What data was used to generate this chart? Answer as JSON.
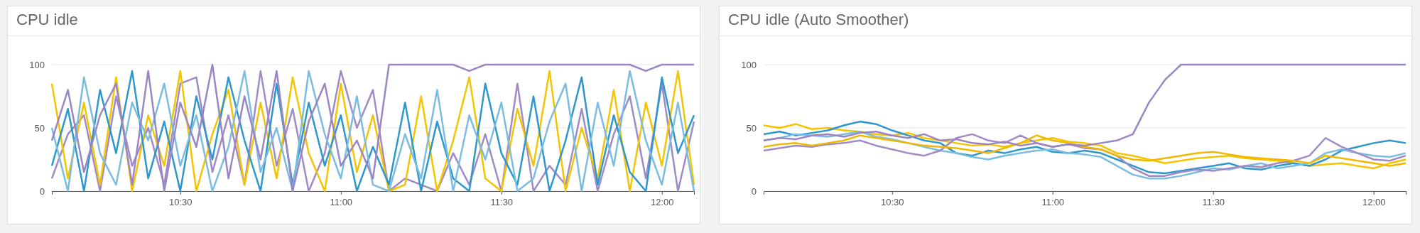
{
  "chart_data": [
    {
      "type": "line",
      "title": "CPU idle",
      "xlim": [
        10.1,
        12.1
      ],
      "ylim": [
        0,
        100
      ],
      "yticks": [
        0,
        50,
        100
      ],
      "xticks": [
        {
          "value": 10.5,
          "label": "10:30"
        },
        {
          "value": 11,
          "label": "11:00"
        },
        {
          "value": 11.5,
          "label": "11:30"
        },
        {
          "value": 12,
          "label": "12:00"
        }
      ],
      "grid": "y",
      "x": [
        10.1,
        10.15,
        10.2,
        10.25,
        10.3,
        10.35,
        10.4,
        10.45,
        10.5,
        10.55,
        10.6,
        10.65,
        10.7,
        10.75,
        10.8,
        10.85,
        10.9,
        10.95,
        11,
        11.05,
        11.1,
        11.15,
        11.2,
        11.25,
        11.3,
        11.35,
        11.4,
        11.45,
        11.5,
        11.55,
        11.6,
        11.65,
        11.7,
        11.75,
        11.8,
        11.85,
        11.9,
        11.95,
        12,
        12.05,
        12.1
      ],
      "series": [
        {
          "color": "#a18bc7",
          "values": [
            10,
            45,
            60,
            0,
            75,
            20,
            50,
            5,
            85,
            90,
            15,
            60,
            5,
            95,
            20,
            65,
            0,
            30,
            95,
            50,
            80,
            0,
            10,
            5,
            0,
            30,
            5,
            45,
            0,
            85,
            0,
            20,
            5,
            65,
            0,
            45,
            75,
            10,
            85,
            0,
            55
          ]
        },
        {
          "color": "#f5c400",
          "values": [
            85,
            10,
            70,
            5,
            90,
            0,
            60,
            20,
            95,
            0,
            45,
            80,
            5,
            70,
            10,
            90,
            30,
            0,
            85,
            15,
            60,
            0,
            5,
            75,
            0,
            40,
            90,
            10,
            0,
            65,
            20,
            95,
            0,
            50,
            10,
            80,
            0,
            70,
            20,
            95,
            5
          ]
        },
        {
          "color": "#2e97cc",
          "values": [
            20,
            65,
            0,
            80,
            30,
            95,
            10,
            55,
            0,
            75,
            25,
            90,
            40,
            0,
            85,
            5,
            70,
            20,
            60,
            0,
            35,
            5,
            70,
            0,
            55,
            10,
            0,
            85,
            30,
            5,
            75,
            0,
            40,
            90,
            5,
            60,
            15,
            0,
            90,
            30,
            60
          ]
        },
        {
          "color": "#7bbde0",
          "values": [
            50,
            0,
            90,
            30,
            5,
            70,
            40,
            85,
            20,
            60,
            0,
            35,
            95,
            15,
            50,
            0,
            95,
            45,
            10,
            75,
            5,
            0,
            45,
            10,
            80,
            0,
            60,
            25,
            70,
            0,
            10,
            55,
            85,
            0,
            70,
            20,
            95,
            40,
            5,
            70,
            0
          ]
        },
        {
          "color": "#9b86c4",
          "values": [
            40,
            80,
            15,
            60,
            85,
            5,
            95,
            0,
            70,
            35,
            100,
            10,
            75,
            25,
            95,
            0,
            55,
            85,
            20,
            40,
            10,
            100,
            100,
            100,
            100,
            100,
            95,
            100,
            100,
            100,
            100,
            100,
            100,
            100,
            100,
            100,
            100,
            95,
            100,
            100,
            100
          ]
        }
      ]
    },
    {
      "type": "line",
      "title": "CPU idle (Auto Smoother)",
      "xlim": [
        10.1,
        12.1
      ],
      "ylim": [
        0,
        100
      ],
      "yticks": [
        0,
        50,
        100
      ],
      "xticks": [
        {
          "value": 10.5,
          "label": "10:30"
        },
        {
          "value": 11,
          "label": "11:00"
        },
        {
          "value": 11.5,
          "label": "11:30"
        },
        {
          "value": 12,
          "label": "12:00"
        }
      ],
      "grid": "y",
      "x": [
        10.1,
        10.15,
        10.2,
        10.25,
        10.3,
        10.35,
        10.4,
        10.45,
        10.5,
        10.55,
        10.6,
        10.65,
        10.7,
        10.75,
        10.8,
        10.85,
        10.9,
        10.95,
        11,
        11.05,
        11.1,
        11.15,
        11.2,
        11.25,
        11.3,
        11.35,
        11.4,
        11.45,
        11.5,
        11.55,
        11.6,
        11.65,
        11.7,
        11.75,
        11.8,
        11.85,
        11.9,
        11.95,
        12,
        12.05,
        12.1
      ],
      "series": [
        {
          "color": "#f5c400",
          "values": [
            52,
            50,
            53,
            49,
            50,
            48,
            47,
            45,
            44,
            46,
            42,
            40,
            38,
            36,
            37,
            35,
            38,
            40,
            42,
            39,
            38,
            36,
            30,
            28,
            25,
            22,
            24,
            26,
            27,
            28,
            26,
            25,
            24,
            22,
            20,
            21,
            22,
            20,
            18,
            22,
            25
          ]
        },
        {
          "color": "#2e97cc",
          "values": [
            45,
            47,
            44,
            46,
            48,
            52,
            55,
            53,
            48,
            44,
            40,
            38,
            30,
            28,
            32,
            30,
            33,
            35,
            31,
            30,
            32,
            30,
            25,
            20,
            15,
            14,
            16,
            18,
            20,
            22,
            18,
            17,
            20,
            22,
            20,
            25,
            32,
            35,
            38,
            40,
            38
          ]
        },
        {
          "color": "#7bbde0",
          "values": [
            40,
            42,
            45,
            44,
            43,
            45,
            47,
            43,
            41,
            38,
            35,
            32,
            30,
            27,
            25,
            28,
            30,
            32,
            33,
            30,
            29,
            27,
            20,
            13,
            10,
            10,
            12,
            15,
            18,
            17,
            20,
            22,
            18,
            20,
            22,
            30,
            33,
            30,
            28,
            27,
            30
          ]
        },
        {
          "color": "#a18bc7",
          "values": [
            32,
            34,
            36,
            35,
            37,
            38,
            40,
            36,
            33,
            30,
            28,
            32,
            42,
            45,
            40,
            38,
            44,
            38,
            35,
            37,
            34,
            33,
            28,
            18,
            12,
            12,
            15,
            17,
            16,
            18,
            20,
            19,
            22,
            24,
            28,
            42,
            35,
            30,
            25,
            24,
            28
          ]
        },
        {
          "color": "#f0b800",
          "values": [
            35,
            37,
            38,
            36,
            38,
            40,
            44,
            42,
            40,
            38,
            36,
            35,
            34,
            32,
            30,
            34,
            38,
            44,
            40,
            38,
            35,
            33,
            28,
            25,
            24,
            26,
            28,
            30,
            31,
            29,
            27,
            26,
            25,
            24,
            22,
            28,
            26,
            24,
            22,
            20,
            22
          ]
        },
        {
          "color": "#9b86c4",
          "values": [
            40,
            42,
            41,
            44,
            45,
            43,
            46,
            47,
            44,
            42,
            45,
            40,
            41,
            38,
            37,
            39,
            36,
            38,
            35,
            37,
            36,
            38,
            40,
            45,
            70,
            88,
            100,
            100,
            100,
            100,
            100,
            100,
            100,
            100,
            100,
            100,
            100,
            100,
            100,
            100,
            100
          ]
        }
      ]
    }
  ]
}
